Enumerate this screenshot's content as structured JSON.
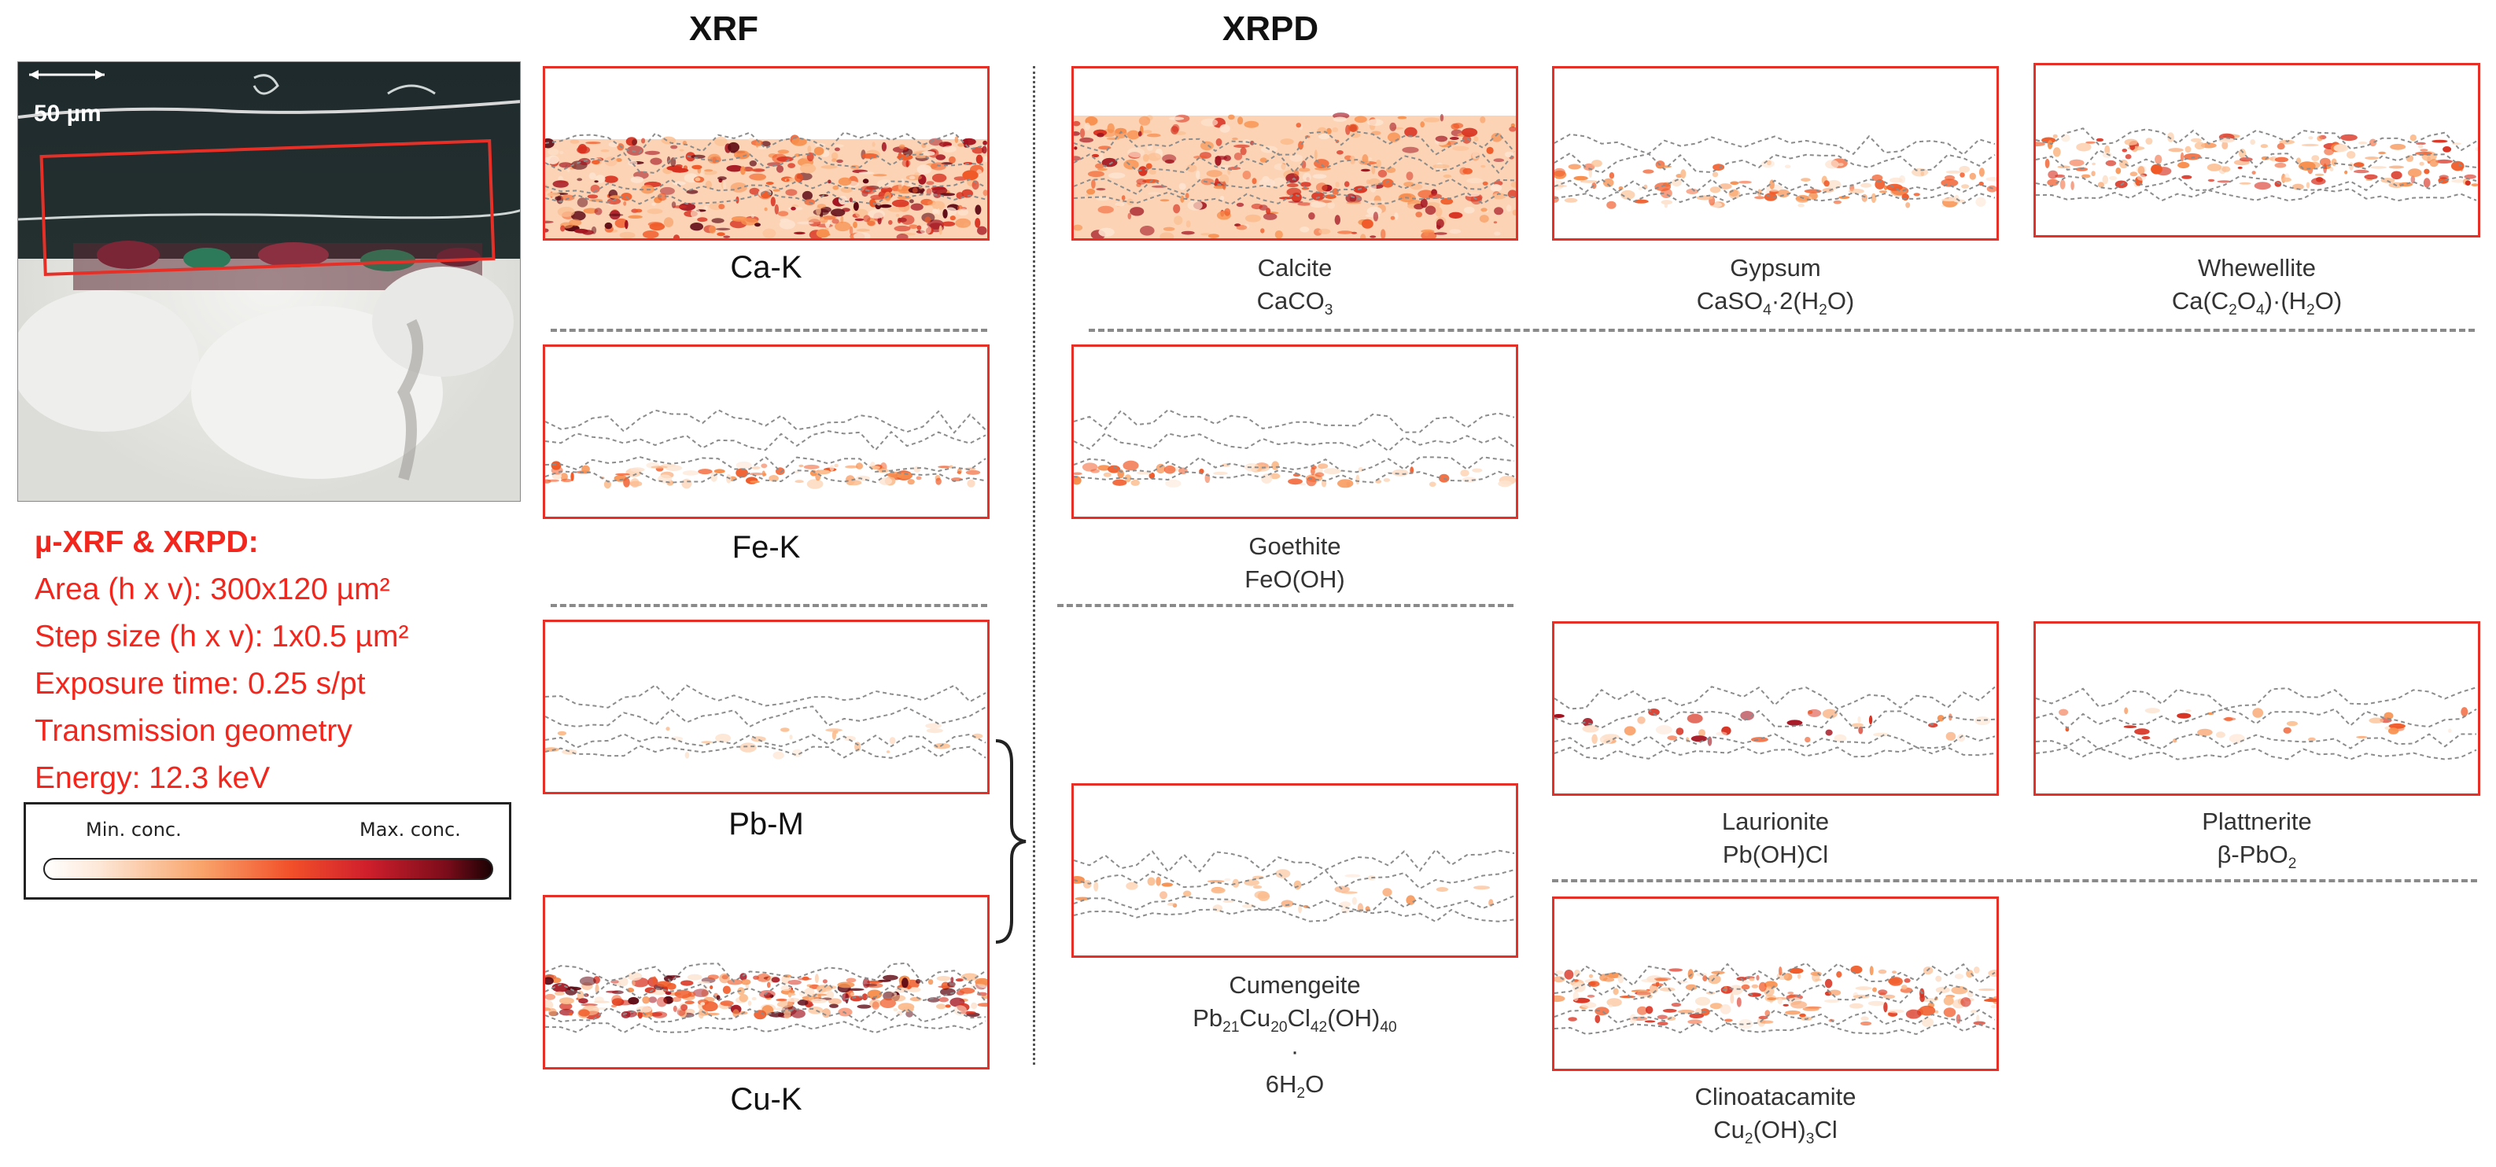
{
  "headers": {
    "xrf": "XRF",
    "xrpd": "XRPD"
  },
  "photo": {
    "scale_label": "50 µm"
  },
  "params": {
    "title": "µ-XRF & XRPD:",
    "area": "Area (h x v): 300x120 µm²",
    "step": "Step size (h x v): 1x0.5 µm²",
    "exposure": "Exposure time: 0.25 s/pt",
    "geometry": "Transmission geometry",
    "energy": "Energy: 12.3 keV"
  },
  "legend": {
    "min": "Min. conc.",
    "max": "Max. conc."
  },
  "xrf": [
    {
      "label": "Ca-K"
    },
    {
      "label": "Fe-K"
    },
    {
      "label": "Pb-M"
    },
    {
      "label": "Cu-K"
    }
  ],
  "xrpd": [
    {
      "name": "Calcite",
      "formula_html": "CaCO<sub>3</sub>"
    },
    {
      "name": "Gypsum",
      "formula_html": "CaSO<sub>4</sub>·2(H<sub>2</sub>O)"
    },
    {
      "name": "Whewellite",
      "formula_html": "Ca(C<sub>2</sub>O<sub>4</sub>)·(H<sub>2</sub>O)"
    },
    {
      "name": "Goethite",
      "formula_html": "FeO(OH)"
    },
    {
      "name": "Laurionite",
      "formula_html": "Pb(OH)Cl"
    },
    {
      "name": "Plattnerite",
      "formula_html": "β-PbO<sub>2</sub>"
    },
    {
      "name": "Cumengeite",
      "formula_html": "Pb<sub>21</sub>Cu<sub>20</sub>Cl<sub>42</sub>(OH)<sub>40</sub>",
      "formula2": "·",
      "formula3_html": "6H<sub>2</sub>O"
    },
    {
      "name": "Clinoatacamite",
      "formula_html": "Cu<sub>2</sub>(OH)<sub>3</sub>Cl"
    }
  ],
  "colors": {
    "frame": "#e63027",
    "text_red": "#f2261c",
    "dash": "#8a8a8a"
  }
}
